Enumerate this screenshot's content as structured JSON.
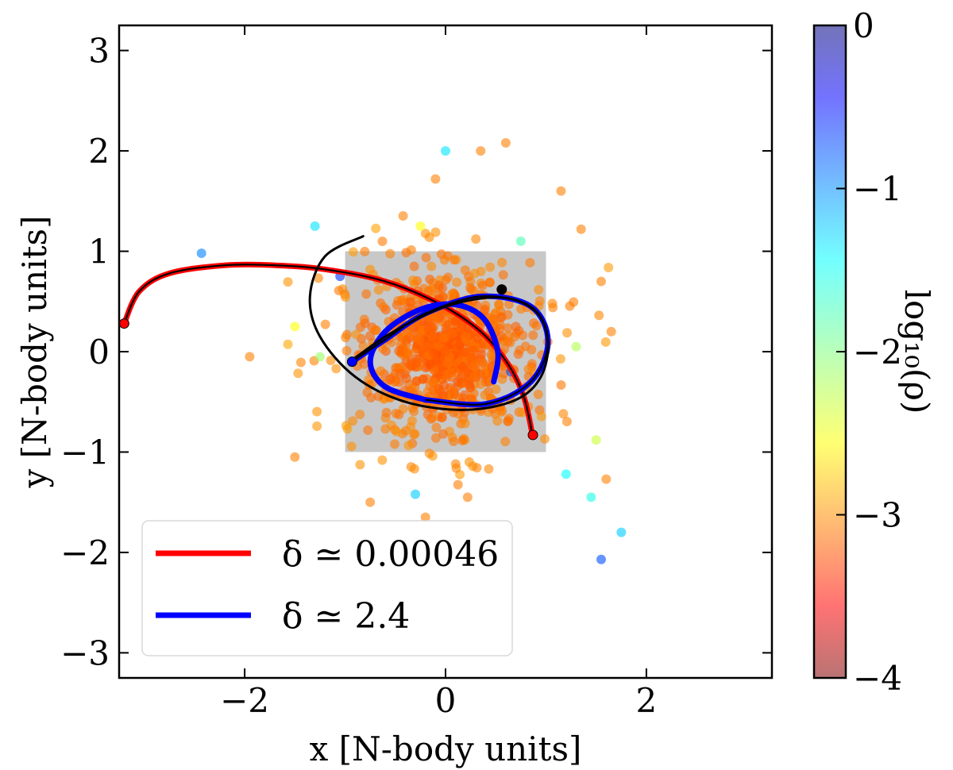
{
  "chart_data": {
    "type": "scatter",
    "xlabel": "x [N-body units]",
    "ylabel": "y [N-body units]",
    "xlim": [
      -3.25,
      3.25
    ],
    "ylim": [
      -3.25,
      3.25
    ],
    "x_ticks": [
      -2,
      0,
      2
    ],
    "y_ticks": [
      -3,
      -2,
      -1,
      0,
      1,
      2,
      3
    ],
    "x_tick_labels": [
      "−2",
      "0",
      "2"
    ],
    "y_tick_labels": [
      "−3",
      "−2",
      "−1",
      "0",
      "1",
      "2",
      "3"
    ],
    "grid": false,
    "colorbar": {
      "label": "log₁₀(ρ)",
      "range": [
        -4,
        0
      ],
      "ticks": [
        0,
        -1,
        -2,
        -3,
        -4
      ],
      "tick_labels": [
        "0",
        "−1",
        "−2",
        "−3",
        "−4"
      ],
      "colormap": "jet"
    },
    "shaded_region": {
      "x": [
        -1,
        1
      ],
      "y": [
        -1,
        1
      ],
      "color": "#c8c8c8"
    },
    "particles": {
      "count": 1000,
      "center": [
        0,
        0
      ],
      "notes_color": "colored by log10 density"
    },
    "outliers": [
      {
        "x": -0.1,
        "y": 1.72,
        "c": -1.0
      },
      {
        "x": 0.35,
        "y": 2.0,
        "c": -1.0
      },
      {
        "x": 0.6,
        "y": 2.08,
        "c": -1.0
      },
      {
        "x": 0.0,
        "y": 2.0,
        "c": -2.6
      },
      {
        "x": 1.15,
        "y": 1.6,
        "c": -1.0
      },
      {
        "x": -2.43,
        "y": 0.98,
        "c": -3.0
      },
      {
        "x": -1.3,
        "y": 1.25,
        "c": -2.6
      },
      {
        "x": -1.95,
        "y": -0.05,
        "c": -1.0
      },
      {
        "x": -1.5,
        "y": -1.05,
        "c": -1.0
      },
      {
        "x": 1.75,
        "y": -1.8,
        "c": -2.7
      },
      {
        "x": 1.55,
        "y": -2.07,
        "c": -3.2
      },
      {
        "x": 1.45,
        "y": -1.45,
        "c": -2.4
      },
      {
        "x": 1.6,
        "y": -1.27,
        "c": -1.0
      },
      {
        "x": 1.5,
        "y": -0.88,
        "c": -1.7
      },
      {
        "x": 1.65,
        "y": 0.2,
        "c": -1.0
      },
      {
        "x": 1.35,
        "y": 1.22,
        "c": -1.0
      },
      {
        "x": 1.55,
        "y": 0.7,
        "c": -1.0
      },
      {
        "x": 0.22,
        "y": -1.45,
        "c": -1.0
      },
      {
        "x": -0.3,
        "y": -1.42,
        "c": -2.7
      },
      {
        "x": -0.75,
        "y": -1.5,
        "c": -1.0
      },
      {
        "x": -0.2,
        "y": -1.65,
        "c": -1.0
      },
      {
        "x": 1.2,
        "y": -1.22,
        "c": -2.5
      },
      {
        "x": 1.3,
        "y": 0.05,
        "c": -1.8
      },
      {
        "x": 0.65,
        "y": -0.2,
        "c": -3.2
      },
      {
        "x": -1.25,
        "y": -0.05,
        "c": -1.9
      },
      {
        "x": -1.5,
        "y": 0.25,
        "c": -1.5
      },
      {
        "x": -0.25,
        "y": 1.25,
        "c": -1.5
      },
      {
        "x": 0.75,
        "y": 1.1,
        "c": -2.2
      },
      {
        "x": -1.05,
        "y": 0.75,
        "c": -3.3
      }
    ],
    "series": [
      {
        "name": "δ ≃ 0.00046",
        "color": "#ff0000",
        "x": [
          -3.2,
          -3.05,
          -2.75,
          -2.2,
          -1.7,
          -1.2,
          -0.6,
          -0.05,
          0.35,
          0.62,
          0.78,
          0.87
        ],
        "y": [
          0.28,
          0.6,
          0.78,
          0.86,
          0.86,
          0.82,
          0.7,
          0.47,
          0.2,
          -0.12,
          -0.45,
          -0.85
        ]
      },
      {
        "name": "δ ≃ 2.4",
        "color": "#0000ff",
        "x": [
          0.48,
          0.52,
          0.38,
          0.1,
          -0.25,
          -0.6,
          -0.75,
          -0.6,
          -0.2,
          0.4,
          0.85,
          1.02,
          0.85,
          0.35,
          -0.2,
          -0.6,
          -0.93
        ],
        "y": [
          -0.3,
          0.0,
          0.33,
          0.47,
          0.42,
          0.2,
          -0.1,
          -0.35,
          -0.48,
          -0.52,
          -0.3,
          0.1,
          0.45,
          0.55,
          0.38,
          0.12,
          -0.1
        ]
      },
      {
        "name": "",
        "color": "#000000",
        "x": [
          -0.82,
          -1.2,
          -1.35,
          -1.25,
          -0.9,
          -0.4,
          0.2,
          0.7,
          0.95,
          1.02,
          0.9,
          0.55,
          0.0,
          -0.55,
          -0.95
        ],
        "y": [
          1.15,
          0.95,
          0.55,
          0.15,
          -0.25,
          -0.5,
          -0.58,
          -0.48,
          -0.25,
          0.1,
          0.4,
          0.54,
          0.45,
          0.18,
          -0.1
        ]
      }
    ],
    "markers": [
      {
        "x": -3.2,
        "y": 0.28,
        "color": "#ff0000"
      },
      {
        "x": 0.87,
        "y": -0.83,
        "color": "#ff0000"
      },
      {
        "x": -0.93,
        "y": -0.1,
        "color": "#0000ff"
      },
      {
        "x": 0.56,
        "y": 0.62,
        "color": "#000000"
      }
    ],
    "legend": {
      "position": "lower-left",
      "entries": [
        {
          "label": "δ ≃ 0.00046",
          "color": "#ff0000"
        },
        {
          "label": "δ ≃ 2.4",
          "color": "#0000ff"
        }
      ]
    }
  }
}
